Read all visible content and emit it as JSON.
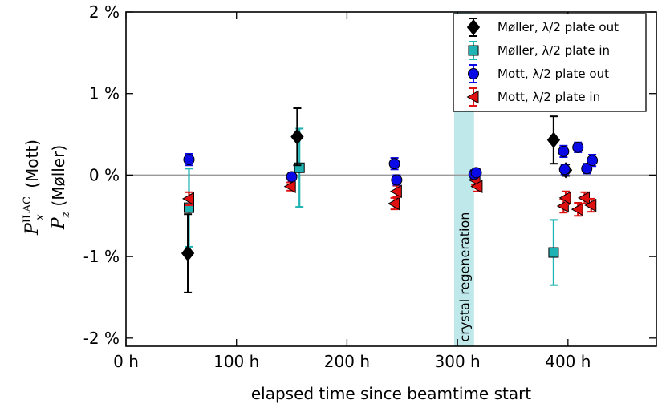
{
  "chart_data": {
    "type": "scatter",
    "xlabel": "elapsed time since beamtime start",
    "ylabel_top": "(Mott)",
    "ylabel_bottom": "(Møller)",
    "ylabel_top_symbol": "P",
    "ylabel_top_sub": "x",
    "ylabel_top_sup": "ILAC",
    "ylabel_bottom_symbol": "P",
    "ylabel_bottom_sub": "z",
    "xlim": [
      0,
      480
    ],
    "ylim": [
      -2.1,
      2.0
    ],
    "x_ticks": [
      0,
      100,
      200,
      300,
      400
    ],
    "x_tick_labels": [
      "0 h",
      "100 h",
      "200 h",
      "300 h",
      "400 h"
    ],
    "y_ticks": [
      -2,
      -1,
      0,
      1,
      2
    ],
    "y_tick_labels": [
      "-2 %",
      "-1 %",
      "0 %",
      "1 %",
      "2 %"
    ],
    "reference_line": 0,
    "band": {
      "x_start": 297,
      "x_end": 315,
      "label": "crystal regeneration",
      "color": "#bfe8ea"
    },
    "legend_position": "top-right",
    "series": [
      {
        "name": "Møller, λ/2 plate out",
        "marker": "diamond",
        "color": "#000000",
        "error_color": "#000000",
        "points": [
          {
            "x": 56,
            "y": -0.96,
            "err": 0.48
          },
          {
            "x": 155,
            "y": 0.47,
            "err": 0.35
          },
          {
            "x": 387,
            "y": 0.43,
            "err": 0.29
          },
          {
            "x": 398,
            "y": 0.06,
            "err": 0.07
          }
        ]
      },
      {
        "name": "Møller, λ/2 plate in",
        "marker": "square",
        "color": "#1fb3b3",
        "error_color": "#1fb3b3",
        "points": [
          {
            "x": 57,
            "y": -0.4,
            "err": 0.48
          },
          {
            "x": 157,
            "y": 0.09,
            "err": 0.48
          },
          {
            "x": 387,
            "y": -0.95,
            "err": 0.4
          }
        ]
      },
      {
        "name": "Mott, λ/2 plate out",
        "marker": "circle",
        "color": "#0a0ae6",
        "error_color": "#0a0ae6",
        "points": [
          {
            "x": 57,
            "y": 0.19,
            "err": 0.07
          },
          {
            "x": 150,
            "y": -0.02,
            "err": 0.05
          },
          {
            "x": 243,
            "y": 0.14,
            "err": 0.07
          },
          {
            "x": 245,
            "y": -0.06,
            "err": 0.06
          },
          {
            "x": 315,
            "y": 0.01,
            "err": 0.05
          },
          {
            "x": 317,
            "y": 0.03,
            "err": 0.05
          },
          {
            "x": 396,
            "y": 0.29,
            "err": 0.07
          },
          {
            "x": 397,
            "y": 0.07,
            "err": 0.06
          },
          {
            "x": 409,
            "y": 0.34,
            "err": 0.06
          },
          {
            "x": 417,
            "y": 0.08,
            "err": 0.06
          },
          {
            "x": 422,
            "y": 0.18,
            "err": 0.07
          }
        ]
      },
      {
        "name": "Mott, λ/2 plate in",
        "marker": "triangle-left",
        "color": "#e01010",
        "error_color": "#e01010",
        "points": [
          {
            "x": 57,
            "y": -0.29,
            "err": 0.08
          },
          {
            "x": 149,
            "y": -0.14,
            "err": 0.05
          },
          {
            "x": 243,
            "y": -0.35,
            "err": 0.07
          },
          {
            "x": 245,
            "y": -0.2,
            "err": 0.07
          },
          {
            "x": 316,
            "y": -0.06,
            "err": 0.06
          },
          {
            "x": 318,
            "y": -0.14,
            "err": 0.06
          },
          {
            "x": 396,
            "y": -0.38,
            "err": 0.08
          },
          {
            "x": 398,
            "y": -0.28,
            "err": 0.08
          },
          {
            "x": 409,
            "y": -0.42,
            "err": 0.08
          },
          {
            "x": 415,
            "y": -0.28,
            "err": 0.07
          },
          {
            "x": 421,
            "y": -0.37,
            "err": 0.08
          }
        ]
      }
    ]
  }
}
